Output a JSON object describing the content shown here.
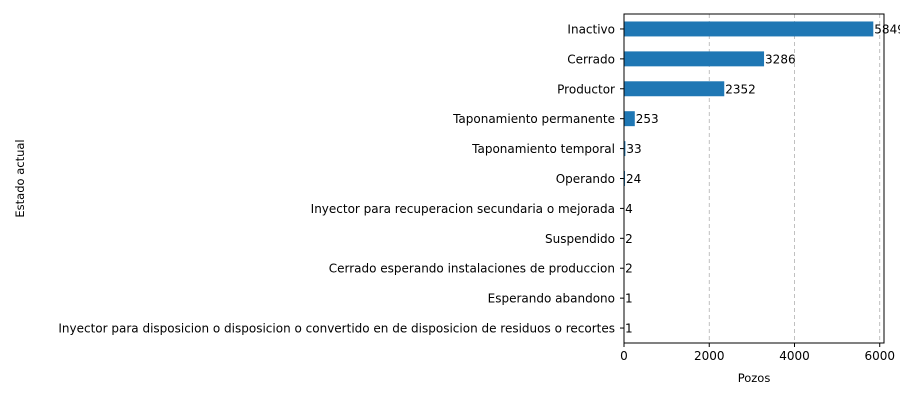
{
  "chart_data": {
    "type": "bar",
    "orientation": "horizontal",
    "xlabel": "Pozos",
    "ylabel": "Estado actual",
    "xlim": [
      0,
      6100
    ],
    "xticks": [
      0,
      2000,
      4000,
      6000
    ],
    "xtick_labels": [
      "0",
      "2000",
      "4000",
      "6000"
    ],
    "grid": "x-dashed",
    "bar_color": "#1f77b4",
    "categories": [
      "Inactivo",
      "Cerrado",
      "Productor",
      "Taponamiento permanente",
      "Taponamiento temporal",
      "Operando",
      "Inyector para recuperacion secundaria o mejorada",
      "Suspendido",
      "Cerrado esperando instalaciones de produccion",
      "Esperando abandono",
      "Inyector para disposicion o disposicion o convertido en de disposicion de residuos o recortes"
    ],
    "values": [
      5849,
      3286,
      2352,
      253,
      33,
      24,
      4,
      2,
      2,
      1,
      1
    ],
    "value_labels": [
      "5849",
      "3286",
      "2352",
      "253",
      "33",
      "24",
      "4",
      "2",
      "2",
      "1",
      "1"
    ]
  }
}
